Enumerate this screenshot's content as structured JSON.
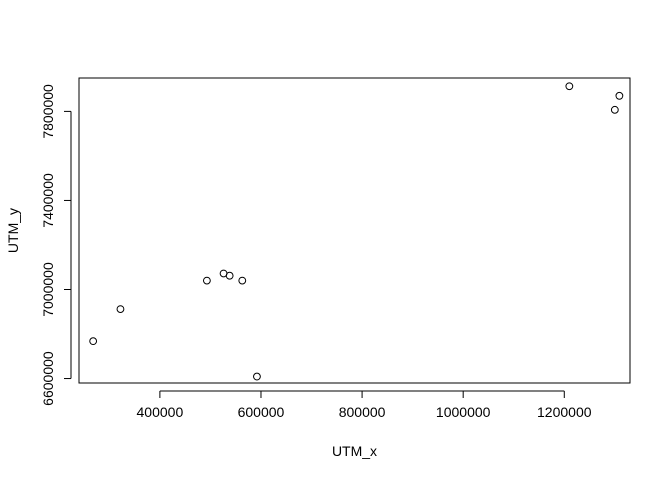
{
  "chart_data": {
    "type": "scatter",
    "title": "",
    "xlabel": "UTM_x",
    "ylabel": "UTM_y",
    "xlim": [
      240000,
      1330000
    ],
    "ylim": [
      6580000,
      7950000
    ],
    "x_ticks": [
      400000,
      600000,
      800000,
      1000000,
      1200000
    ],
    "x_tick_labels": [
      "400000",
      "600000",
      "800000",
      "1000000",
      "1200000"
    ],
    "y_ticks": [
      6600000,
      7000000,
      7400000,
      7800000
    ],
    "y_tick_labels": [
      "6600000",
      "7000000",
      "7400000",
      "7800000"
    ],
    "grid": false,
    "legend": "none",
    "point_style": "open circle",
    "colors": {
      "points": "#000000",
      "frame": "#000000",
      "background": "#ffffff"
    },
    "points": [
      {
        "x": 268000,
        "y": 6768000
      },
      {
        "x": 322000,
        "y": 6912000
      },
      {
        "x": 493000,
        "y": 7040000
      },
      {
        "x": 526000,
        "y": 7072000
      },
      {
        "x": 538000,
        "y": 7062000
      },
      {
        "x": 563000,
        "y": 7040000
      },
      {
        "x": 592000,
        "y": 6609000
      },
      {
        "x": 1210000,
        "y": 7913000
      },
      {
        "x": 1300000,
        "y": 7807000
      },
      {
        "x": 1309000,
        "y": 7870000
      }
    ]
  }
}
